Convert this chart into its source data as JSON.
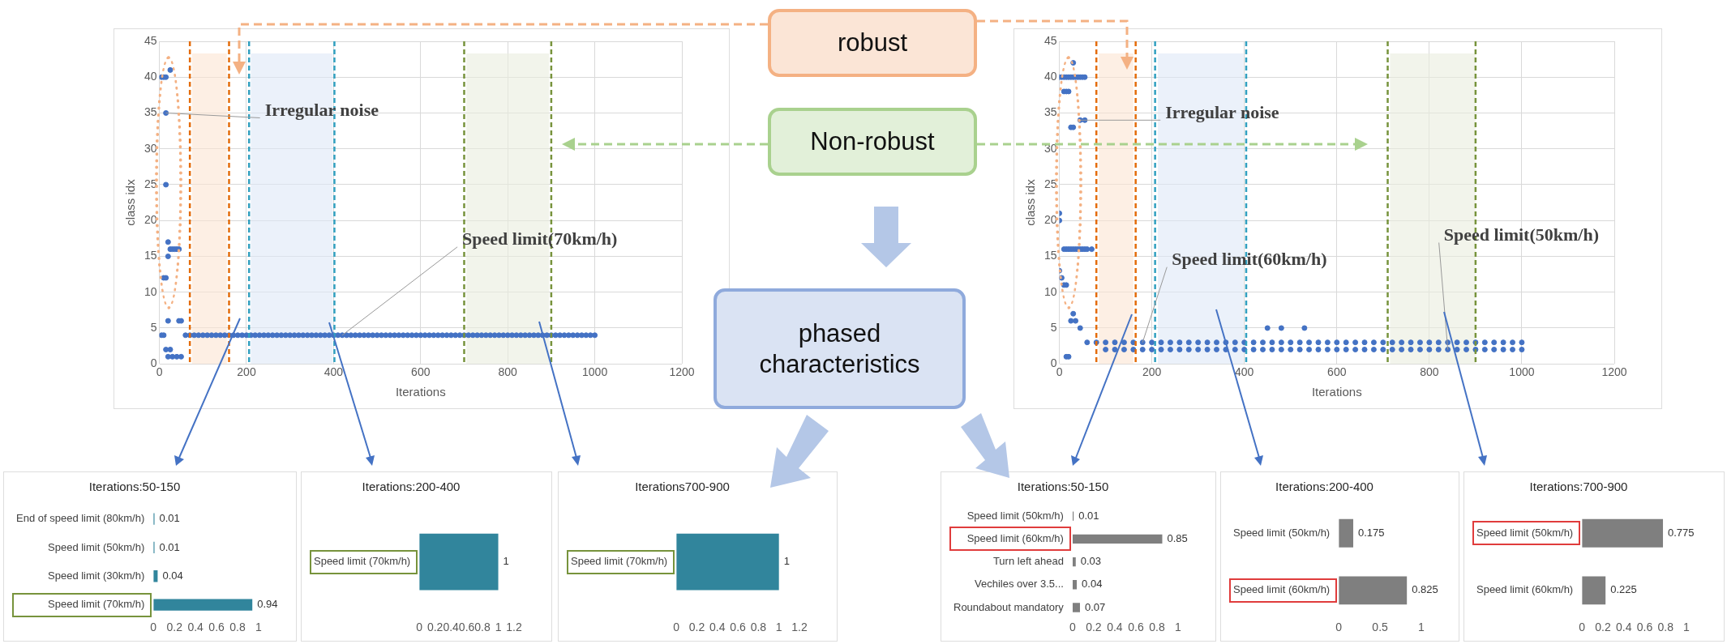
{
  "chart_data": [
    {
      "type": "scatter",
      "xlabel": "Iterations",
      "ylabel": "class idx",
      "color": "#4472c4",
      "marker": "circle",
      "grid": true,
      "xlim": [
        0,
        1200
      ],
      "xticks": [
        0,
        200,
        400,
        600,
        800,
        1000,
        1200
      ],
      "ylim": [
        0,
        45
      ],
      "yticks": [
        0,
        5,
        10,
        15,
        20,
        25,
        30,
        35,
        40,
        45
      ],
      "x": [
        5,
        10,
        15,
        25,
        15,
        15,
        20,
        25,
        30,
        35,
        40,
        45,
        20,
        10,
        15,
        20,
        45,
        50,
        5,
        10,
        15,
        25,
        20,
        30,
        40,
        50,
        60,
        70,
        80,
        90,
        100,
        110,
        120,
        130,
        140,
        150,
        160,
        170,
        180,
        190,
        200,
        210,
        220,
        230,
        240,
        250,
        260,
        270,
        280,
        290,
        300,
        310,
        320,
        330,
        340,
        350,
        360,
        370,
        380,
        390,
        400,
        410,
        420,
        430,
        440,
        450,
        460,
        470,
        480,
        490,
        500,
        510,
        520,
        530,
        540,
        550,
        560,
        570,
        580,
        590,
        600,
        610,
        620,
        630,
        640,
        650,
        660,
        670,
        680,
        690,
        700,
        710,
        720,
        730,
        740,
        750,
        760,
        770,
        780,
        790,
        800,
        810,
        820,
        830,
        840,
        850,
        860,
        870,
        880,
        890,
        900,
        910,
        920,
        930,
        940,
        950,
        960,
        970,
        980,
        990,
        1000
      ],
      "values": [
        40,
        40,
        40,
        41,
        35,
        25,
        17,
        16,
        16,
        16,
        16,
        16,
        15,
        12,
        12,
        6,
        6,
        6,
        4,
        4,
        2,
        2,
        1,
        1,
        1,
        1,
        4,
        4,
        4,
        4,
        4,
        4,
        4,
        4,
        4,
        4,
        4,
        4,
        4,
        4,
        4,
        4,
        4,
        4,
        4,
        4,
        4,
        4,
        4,
        4,
        4,
        4,
        4,
        4,
        4,
        4,
        4,
        4,
        4,
        4,
        4,
        4,
        4,
        4,
        4,
        4,
        4,
        4,
        4,
        4,
        4,
        4,
        4,
        4,
        4,
        4,
        4,
        4,
        4,
        4,
        4,
        4,
        4,
        4,
        4,
        4,
        4,
        4,
        4,
        4,
        4,
        4,
        4,
        4,
        4,
        4,
        4,
        4,
        4,
        4,
        4,
        4,
        4,
        4,
        4,
        4,
        4,
        4,
        4,
        4,
        4,
        4,
        4,
        4,
        4,
        4,
        4,
        4,
        4,
        4,
        4
      ],
      "bands": [
        {
          "axis": "x",
          "from": 75,
          "to": 155,
          "color": "#fce4d2"
        },
        {
          "axis": "x",
          "from": 210,
          "to": 398,
          "color": "#dde8f6"
        },
        {
          "axis": "x",
          "from": 705,
          "to": 895,
          "color": "#e9eddd"
        }
      ],
      "ref_lines": [
        {
          "axis": "x",
          "value": 70,
          "color": "#e46c0a",
          "line_style": "dashed"
        },
        {
          "axis": "x",
          "value": 160,
          "color": "#e46c0a",
          "line_style": "dashed"
        },
        {
          "axis": "x",
          "value": 206,
          "color": "#31a0c0",
          "line_style": "dashed"
        },
        {
          "axis": "x",
          "value": 402,
          "color": "#31a0c0",
          "line_style": "dashed"
        },
        {
          "axis": "x",
          "value": 700,
          "color": "#77933c",
          "line_style": "dashed"
        },
        {
          "axis": "x",
          "value": 900,
          "color": "#77933c",
          "line_style": "dashed"
        }
      ],
      "annotations": [
        {
          "text": "Irregular noise",
          "x": 15,
          "y": 35
        },
        {
          "text": "Speed limit(70km/h)",
          "x": 420,
          "y": 4
        }
      ]
    },
    {
      "type": "scatter",
      "xlabel": "Iterations",
      "ylabel": "class idx",
      "color": "#4472c4",
      "marker": "circle",
      "grid": true,
      "xlim": [
        0,
        1200
      ],
      "xticks": [
        0,
        200,
        400,
        600,
        800,
        1000,
        1200
      ],
      "ylim": [
        0,
        45
      ],
      "yticks": [
        0,
        5,
        10,
        15,
        20,
        25,
        30,
        35,
        40,
        45
      ],
      "x": [
        0,
        5,
        10,
        15,
        20,
        25,
        30,
        35,
        40,
        45,
        50,
        55,
        10,
        15,
        20,
        25,
        30,
        45,
        55,
        30,
        0,
        0,
        10,
        15,
        20,
        25,
        30,
        35,
        40,
        45,
        50,
        55,
        60,
        70,
        0,
        5,
        10,
        15,
        25,
        30,
        35,
        45,
        15,
        20,
        450,
        480,
        530,
        60,
        80,
        100,
        120,
        140,
        160,
        180,
        200,
        220,
        240,
        260,
        280,
        300,
        320,
        340,
        360,
        380,
        400,
        420,
        440,
        460,
        480,
        500,
        520,
        540,
        560,
        580,
        600,
        620,
        640,
        660,
        680,
        700,
        720,
        740,
        760,
        780,
        800,
        820,
        840,
        860,
        880,
        900,
        920,
        940,
        960,
        980,
        1000,
        100,
        120,
        140,
        160,
        180,
        200,
        220,
        240,
        260,
        280,
        300,
        320,
        340,
        360,
        380,
        400,
        420,
        440,
        460,
        480,
        500,
        520,
        540,
        560,
        580,
        600,
        620,
        640,
        660,
        680,
        700,
        720,
        740,
        760,
        780,
        800,
        820,
        840,
        860,
        880,
        900,
        920,
        940,
        960,
        980,
        1000
      ],
      "values": [
        40,
        40,
        40,
        40,
        40,
        40,
        40,
        40,
        40,
        40,
        40,
        40,
        38,
        38,
        38,
        33,
        33,
        34,
        34,
        42,
        21,
        20,
        16,
        16,
        16,
        16,
        16,
        16,
        16,
        16,
        16,
        16,
        16,
        16,
        13,
        12,
        11,
        11,
        6,
        7,
        6,
        5,
        1,
        1,
        5,
        5,
        5,
        3,
        3,
        3,
        3,
        3,
        3,
        3,
        3,
        3,
        3,
        3,
        3,
        3,
        3,
        3,
        3,
        3,
        3,
        3,
        3,
        3,
        3,
        3,
        3,
        3,
        3,
        3,
        3,
        3,
        3,
        3,
        3,
        3,
        3,
        3,
        3,
        3,
        3,
        3,
        3,
        3,
        3,
        3,
        3,
        3,
        3,
        3,
        3,
        2,
        2,
        2,
        2,
        2,
        2,
        2,
        2,
        2,
        2,
        2,
        2,
        2,
        2,
        2,
        2,
        2,
        2,
        2,
        2,
        2,
        2,
        2,
        2,
        2,
        2,
        2,
        2,
        2,
        2,
        2,
        2,
        2,
        2,
        2,
        2,
        2,
        2,
        2,
        2,
        2,
        2,
        2,
        2,
        2,
        2
      ],
      "bands": [
        {
          "axis": "x",
          "from": 85,
          "to": 160,
          "color": "#fce4d2"
        },
        {
          "axis": "x",
          "from": 213,
          "to": 398,
          "color": "#dde8f6"
        },
        {
          "axis": "x",
          "from": 715,
          "to": 900,
          "color": "#e9eddd"
        }
      ],
      "ref_lines": [
        {
          "axis": "x",
          "value": 80,
          "color": "#e46c0a",
          "line_style": "dashed"
        },
        {
          "axis": "x",
          "value": 165,
          "color": "#e46c0a",
          "line_style": "dashed"
        },
        {
          "axis": "x",
          "value": 207,
          "color": "#31a0c0",
          "line_style": "dashed"
        },
        {
          "axis": "x",
          "value": 404,
          "color": "#31a0c0",
          "line_style": "dashed"
        },
        {
          "axis": "x",
          "value": 710,
          "color": "#77933c",
          "line_style": "dashed"
        },
        {
          "axis": "x",
          "value": 900,
          "color": "#77933c",
          "line_style": "dashed"
        }
      ],
      "annotations": [
        {
          "text": "Irregular noise",
          "x": 45,
          "y": 34
        },
        {
          "text": "Speed limit(60km/h)",
          "x": 180,
          "y": 3
        },
        {
          "text": "Speed limit(50km/h)",
          "x": 840,
          "y": 2
        }
      ]
    },
    {
      "type": "bar",
      "orientation": "horizontal",
      "title": "Iterations:50-150",
      "categories": [
        "End of speed limit (80km/h)",
        "Speed limit (50km/h)",
        "Speed limit (30km/h)",
        "Speed limit (70km/h)"
      ],
      "values": [
        0.01,
        0.01,
        0.04,
        0.94
      ],
      "color": "#31859c",
      "xlim": [
        0,
        1
      ],
      "xticks": [
        0,
        0.2,
        0.4,
        0.6,
        0.8,
        1
      ],
      "data_labels": true
    },
    {
      "type": "bar",
      "orientation": "horizontal",
      "title": "Iterations:200-400",
      "categories": [
        "Speed limit (70km/h)"
      ],
      "values": [
        1
      ],
      "color": "#31859c",
      "xlim": [
        0,
        1.2
      ],
      "xticks": [
        0,
        0.2,
        0.4,
        0.6,
        0.8,
        1,
        1.2
      ],
      "data_labels": true
    },
    {
      "type": "bar",
      "orientation": "horizontal",
      "title": "Iterations700-900",
      "categories": [
        "Speed limit (70km/h)"
      ],
      "values": [
        1
      ],
      "color": "#31859c",
      "xlim": [
        0,
        1.2
      ],
      "xticks": [
        0,
        0.2,
        0.4,
        0.6,
        0.8,
        1,
        1.2
      ],
      "data_labels": true
    },
    {
      "type": "bar",
      "orientation": "horizontal",
      "title": "Iterations:50-150",
      "categories": [
        "Speed limit (50km/h)",
        "Speed limit (60km/h)",
        "Turn left ahead",
        "Vechiles over 3.5...",
        "Roundabout mandatory"
      ],
      "values": [
        0.01,
        0.85,
        0.03,
        0.04,
        0.07
      ],
      "color": "#7f7f7f",
      "xlim": [
        0,
        1
      ],
      "xticks": [
        0,
        0.2,
        0.4,
        0.6,
        0.8,
        1
      ],
      "data_labels": true
    },
    {
      "type": "bar",
      "orientation": "horizontal",
      "title": "Iterations:200-400",
      "categories": [
        "Speed limit (50km/h)",
        "Speed limit (60km/h)"
      ],
      "values": [
        0.175,
        0.825
      ],
      "color": "#7f7f7f",
      "xlim": [
        0,
        1
      ],
      "xticks": [
        0,
        0.5,
        1
      ],
      "data_labels": true
    },
    {
      "type": "bar",
      "orientation": "horizontal",
      "title": "Iterations:700-900",
      "categories": [
        "Speed limit (50km/h)",
        "Speed limit (60km/h)"
      ],
      "values": [
        0.775,
        0.225
      ],
      "color": "#7f7f7f",
      "xlim": [
        0,
        1
      ],
      "xticks": [
        0,
        0.2,
        0.4,
        0.6,
        0.8,
        1
      ],
      "data_labels": true
    },
    {
      "type": "other",
      "annotations": [
        "robust",
        "Non-robust",
        "phased characteristics"
      ]
    }
  ]
}
